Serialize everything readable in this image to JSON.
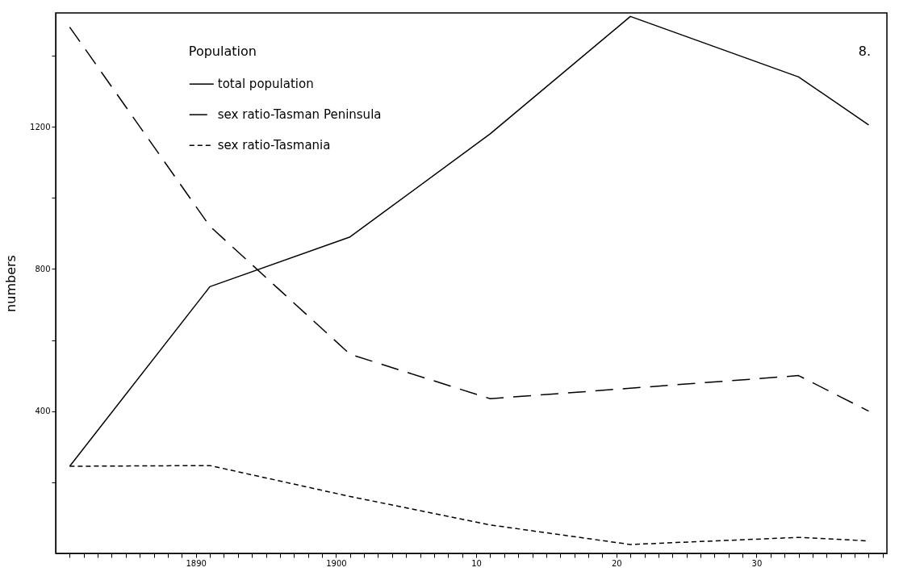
{
  "chart_data": {
    "type": "line",
    "ylabel": "numbers",
    "legend_title": "Population",
    "legend": "top left",
    "grid": false,
    "marker": "none",
    "annotations": [
      "8."
    ],
    "xlim": [
      1880,
      1939.3
    ],
    "ylim": [
      0,
      1520
    ],
    "xticks": [
      {
        "value": 1881,
        "label": null
      },
      {
        "value": 1882,
        "label": null
      },
      {
        "value": 1883,
        "label": null
      },
      {
        "value": 1884,
        "label": null
      },
      {
        "value": 1885,
        "label": null
      },
      {
        "value": 1886,
        "label": null
      },
      {
        "value": 1887,
        "label": null
      },
      {
        "value": 1888,
        "label": null
      },
      {
        "value": 1889,
        "label": null
      },
      1890,
      {
        "value": 1891,
        "label": null
      },
      {
        "value": 1892,
        "label": null
      },
      {
        "value": 1893,
        "label": null
      },
      {
        "value": 1894,
        "label": null
      },
      {
        "value": 1895,
        "label": null
      },
      {
        "value": 1896,
        "label": null
      },
      {
        "value": 1897,
        "label": null
      },
      {
        "value": 1898,
        "label": null
      },
      {
        "value": 1899,
        "label": null
      },
      1900,
      {
        "value": 1901,
        "label": null
      },
      {
        "value": 1902,
        "label": null
      },
      {
        "value": 1903,
        "label": null
      },
      {
        "value": 1904,
        "label": null
      },
      {
        "value": 1905,
        "label": null
      },
      {
        "value": 1906,
        "label": null
      },
      {
        "value": 1907,
        "label": null
      },
      {
        "value": 1908,
        "label": null
      },
      {
        "value": 1909,
        "label": null
      },
      {
        "value": 1910,
        "label": "10"
      },
      {
        "value": 1911,
        "label": null
      },
      {
        "value": 1912,
        "label": null
      },
      {
        "value": 1913,
        "label": null
      },
      {
        "value": 1914,
        "label": null
      },
      {
        "value": 1915,
        "label": null
      },
      {
        "value": 1916,
        "label": null
      },
      {
        "value": 1917,
        "label": null
      },
      {
        "value": 1918,
        "label": null
      },
      {
        "value": 1919,
        "label": null
      },
      {
        "value": 1920,
        "label": "20"
      },
      {
        "value": 1921,
        "label": null
      },
      {
        "value": 1922,
        "label": null
      },
      {
        "value": 1923,
        "label": null
      },
      {
        "value": 1924,
        "label": null
      },
      {
        "value": 1925,
        "label": null
      },
      {
        "value": 1926,
        "label": null
      },
      {
        "value": 1927,
        "label": null
      },
      {
        "value": 1928,
        "label": null
      },
      {
        "value": 1929,
        "label": null
      },
      {
        "value": 1930,
        "label": "30"
      },
      {
        "value": 1931,
        "label": null
      },
      {
        "value": 1932,
        "label": null
      },
      {
        "value": 1933,
        "label": null
      },
      {
        "value": 1934,
        "label": null
      },
      {
        "value": 1935,
        "label": null
      },
      {
        "value": 1936,
        "label": null
      },
      {
        "value": 1937,
        "label": null
      },
      {
        "value": 1938,
        "label": null
      },
      {
        "value": 1939,
        "label": null
      }
    ],
    "yticks": [
      {
        "value": 200,
        "label": null
      },
      400,
      {
        "value": 600,
        "label": null
      },
      800,
      {
        "value": 1000,
        "label": null
      },
      1200,
      {
        "value": 1400,
        "label": null
      }
    ],
    "series": [
      {
        "name": "total population",
        "color": "#000000",
        "line_style": "solid",
        "x": [
          1881,
          1891,
          1901,
          1911,
          1921,
          1933,
          1938
        ],
        "values": [
          245,
          750,
          890,
          1180,
          1510,
          1340,
          1205
        ]
      },
      {
        "name": "sex ratio-Tasman Peninsula",
        "color": "#000000",
        "line_style": "dashed",
        "x": [
          1881,
          1891,
          1901,
          1911,
          1933,
          1938
        ],
        "values": [
          1480,
          920,
          560,
          435,
          500,
          400
        ]
      },
      {
        "name": "sex ratio-Tasmania",
        "color": "#000000",
        "line_style": "dotted",
        "x": [
          1881,
          1891,
          1901,
          1911,
          1921,
          1933,
          1938
        ],
        "values": [
          245,
          247,
          160,
          80,
          25,
          45,
          35
        ]
      }
    ]
  }
}
